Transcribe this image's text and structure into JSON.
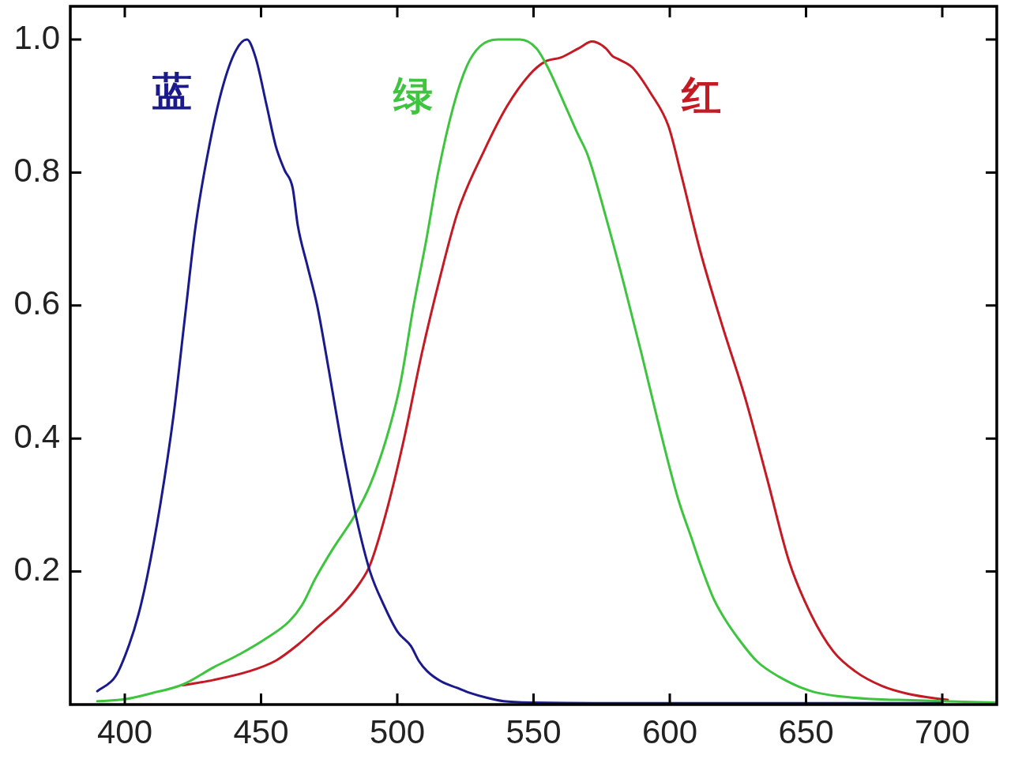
{
  "chart_data": {
    "type": "line",
    "xlim": [
      380,
      720
    ],
    "xticks": [
      400,
      450,
      500,
      550,
      600,
      650,
      700
    ],
    "ylim": [
      0,
      1.05
    ],
    "yticks": [
      0.2,
      0.4,
      0.6,
      0.8,
      {
        "value": 1,
        "label": "1.0"
      }
    ],
    "grid": false,
    "legend": false,
    "marker": "none",
    "line_style": "solid",
    "series": [
      {
        "name": "蓝",
        "color": "#1a1a8c",
        "x": [
          389.9,
          396.7,
          401.6,
          405,
          408.1,
          413,
          417.9,
          422,
          426,
          431,
          435.8,
          440.7,
          444.8,
          448,
          452.1,
          455.4,
          458.6,
          461.6,
          463.5,
          467,
          470.6,
          475,
          479.2,
          482,
          485,
          490,
          495,
          500,
          505,
          508,
          511,
          516,
          522,
          527,
          533,
          539,
          550,
          600,
          650,
          700
        ],
        "values": [
          0.02,
          0.043,
          0.09,
          0.135,
          0.19,
          0.3,
          0.435,
          0.58,
          0.72,
          0.84,
          0.927,
          0.983,
          1.0,
          0.973,
          0.9,
          0.84,
          0.804,
          0.777,
          0.72,
          0.66,
          0.6,
          0.5,
          0.4,
          0.34,
          0.28,
          0.2,
          0.15,
          0.11,
          0.088,
          0.065,
          0.05,
          0.035,
          0.025,
          0.017,
          0.01,
          0.005,
          0.003,
          0.002,
          0.002,
          0.002
        ]
      },
      {
        "name": "绿",
        "color": "#3ec43e",
        "x": [
          389.9,
          400,
          409.8,
          421.2,
          432.6,
          442.3,
          452.1,
          460.3,
          465.1,
          470,
          476.5,
          484.5,
          490,
          496,
          501,
          506,
          510.7,
          515,
          520.6,
          525.5,
          530.4,
          537,
          545,
          551,
          555,
          561.7,
          566,
          570,
          576.5,
          583,
          589.6,
          596,
          603,
          608,
          611.3,
          616,
          620,
          625,
          632,
          640,
          652,
          668,
          684,
          700,
          720
        ],
        "values": [
          0.005,
          0.008,
          0.017,
          0.03,
          0.056,
          0.076,
          0.1,
          0.125,
          0.15,
          0.19,
          0.235,
          0.285,
          0.33,
          0.4,
          0.48,
          0.6,
          0.7,
          0.8,
          0.9,
          0.96,
          0.99,
          1.0,
          1.0,
          0.987,
          0.96,
          0.9,
          0.86,
          0.825,
          0.734,
          0.635,
          0.528,
          0.42,
          0.31,
          0.25,
          0.21,
          0.16,
          0.13,
          0.1,
          0.065,
          0.042,
          0.02,
          0.01,
          0.007,
          0.005,
          0.003
        ]
      },
      {
        "name": "红",
        "color": "#c41a24",
        "x": [
          421.2,
          432.6,
          445.6,
          455.4,
          463.5,
          471.7,
          479.8,
          486.3,
          490,
          496,
          502.5,
          509,
          515.6,
          522.2,
          532,
          540.3,
          548.5,
          554.3,
          560,
          566.6,
          571.5,
          576.5,
          579,
          581.4,
          586.3,
          592.9,
          599.5,
          604,
          611.3,
          619.4,
          627.6,
          635.7,
          643.8,
          651.9,
          660,
          668,
          677.8,
          687.5,
          700,
          702
        ],
        "values": [
          0.029,
          0.037,
          0.05,
          0.066,
          0.09,
          0.12,
          0.15,
          0.183,
          0.21,
          0.29,
          0.4,
          0.528,
          0.641,
          0.741,
          0.834,
          0.9,
          0.947,
          0.967,
          0.973,
          0.987,
          0.997,
          0.987,
          0.975,
          0.97,
          0.958,
          0.92,
          0.87,
          0.8,
          0.68,
          0.568,
          0.462,
          0.34,
          0.215,
          0.135,
          0.08,
          0.05,
          0.028,
          0.016,
          0.008,
          0.007
        ]
      }
    ]
  }
}
